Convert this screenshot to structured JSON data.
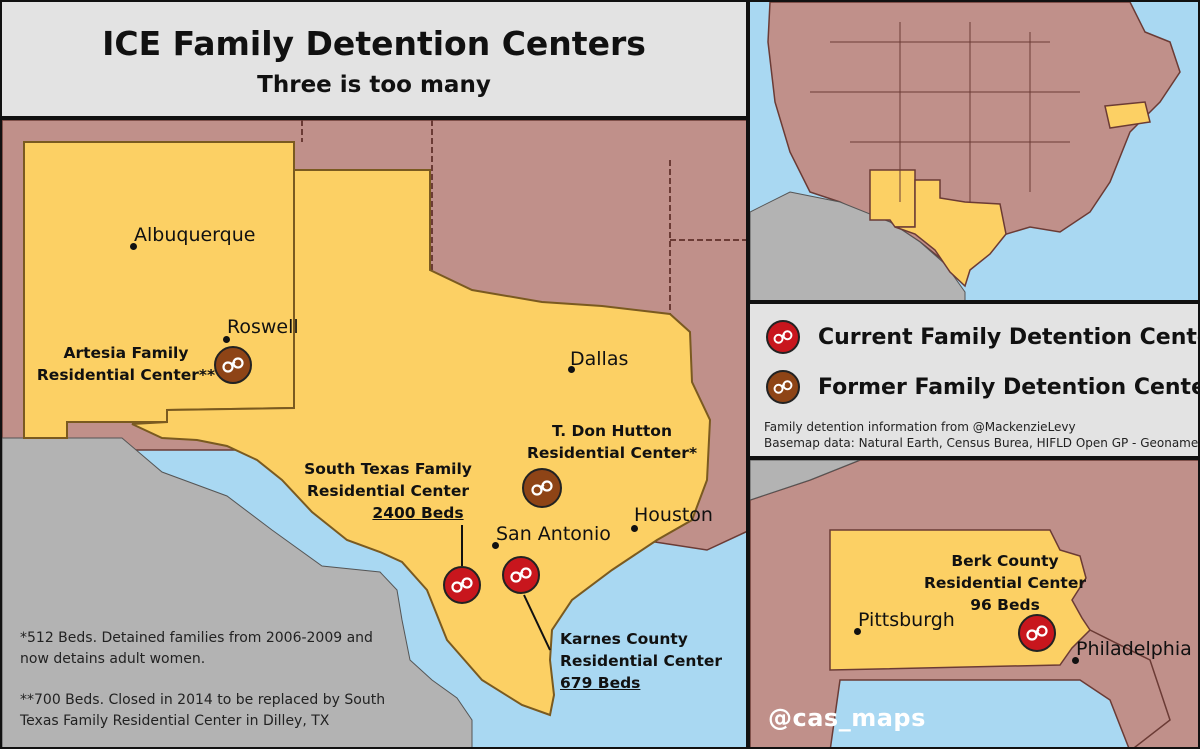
{
  "title": "ICE Family Detention Centers",
  "subtitle": "Three is too many",
  "colors": {
    "state_highlight": "#fcd064",
    "state_other": "#c0908a",
    "water": "#a9d8f2",
    "mexico": "#b3b3b3",
    "current_icon": "#c8161d",
    "former_icon": "#8e4416"
  },
  "cities": {
    "albuquerque": "Albuquerque",
    "roswell": "Roswell",
    "dallas": "Dallas",
    "houston": "Houston",
    "san_antonio": "San Antonio",
    "pittsburgh": "Pittsburgh",
    "philadelphia": "Philadelphia"
  },
  "centers": {
    "artesia": {
      "line1": "Artesia Family",
      "line2": "Residential Center**",
      "status": "former"
    },
    "hutton": {
      "line1": "T. Don Hutton",
      "line2": "Residential Center*",
      "status": "former"
    },
    "south_texas": {
      "line1": "South Texas Family",
      "line2": "Residential Center",
      "beds": "2400 Beds",
      "status": "current"
    },
    "karnes": {
      "line1": "Karnes County",
      "line2": "Residential Center",
      "beds": "679 Beds",
      "status": "current"
    },
    "berks": {
      "line1": "Berk County",
      "line2": "Residential Center",
      "beds": "96 Beds",
      "status": "current"
    }
  },
  "notes": {
    "hutton_line1": "*512 Beds. Detained families from 2006-2009 and",
    "hutton_line2": "now detains adult women.",
    "artesia_line1": "**700 Beds. Closed in 2014 to be replaced by South",
    "artesia_line2": "Texas Family Residential Center in Dilley, TX"
  },
  "legend": {
    "current": "Current Family Detention Center",
    "former": "Former Family Detention Center",
    "icon": "handcuffs-icon"
  },
  "credits": {
    "line1": "Family detention information from @MackenzieLevy",
    "line2": "Basemap data: Natural Earth, Census Burea, HIFLD Open GP - Geonames"
  },
  "watermark": "@cas_maps"
}
